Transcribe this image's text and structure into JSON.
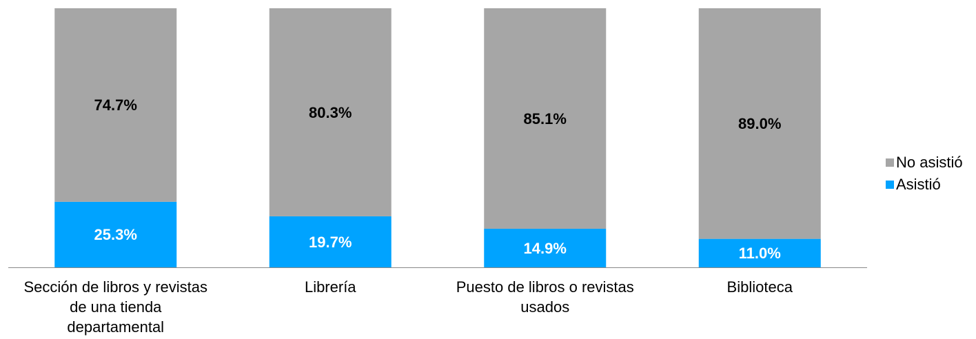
{
  "chart_data": {
    "type": "stacked_bar",
    "categories": [
      "Sección de libros y revistas de una tienda departamental",
      "Librería",
      "Puesto de libros o revistas usados",
      "Biblioteca"
    ],
    "series": [
      {
        "name": "Asistió",
        "color": "#00a3ff",
        "values": [
          25.3,
          19.7,
          14.9,
          11.0
        ],
        "value_labels": [
          "25.3%",
          "19.7%",
          "14.9%",
          "11.0%"
        ]
      },
      {
        "name": "No asistió",
        "color": "#a6a6a6",
        "values": [
          74.7,
          80.3,
          85.1,
          89.0
        ],
        "value_labels": [
          "74.7%",
          "80.3%",
          "85.1%",
          "89.0%"
        ]
      }
    ],
    "ylim": [
      0,
      100
    ],
    "legend": "right"
  }
}
